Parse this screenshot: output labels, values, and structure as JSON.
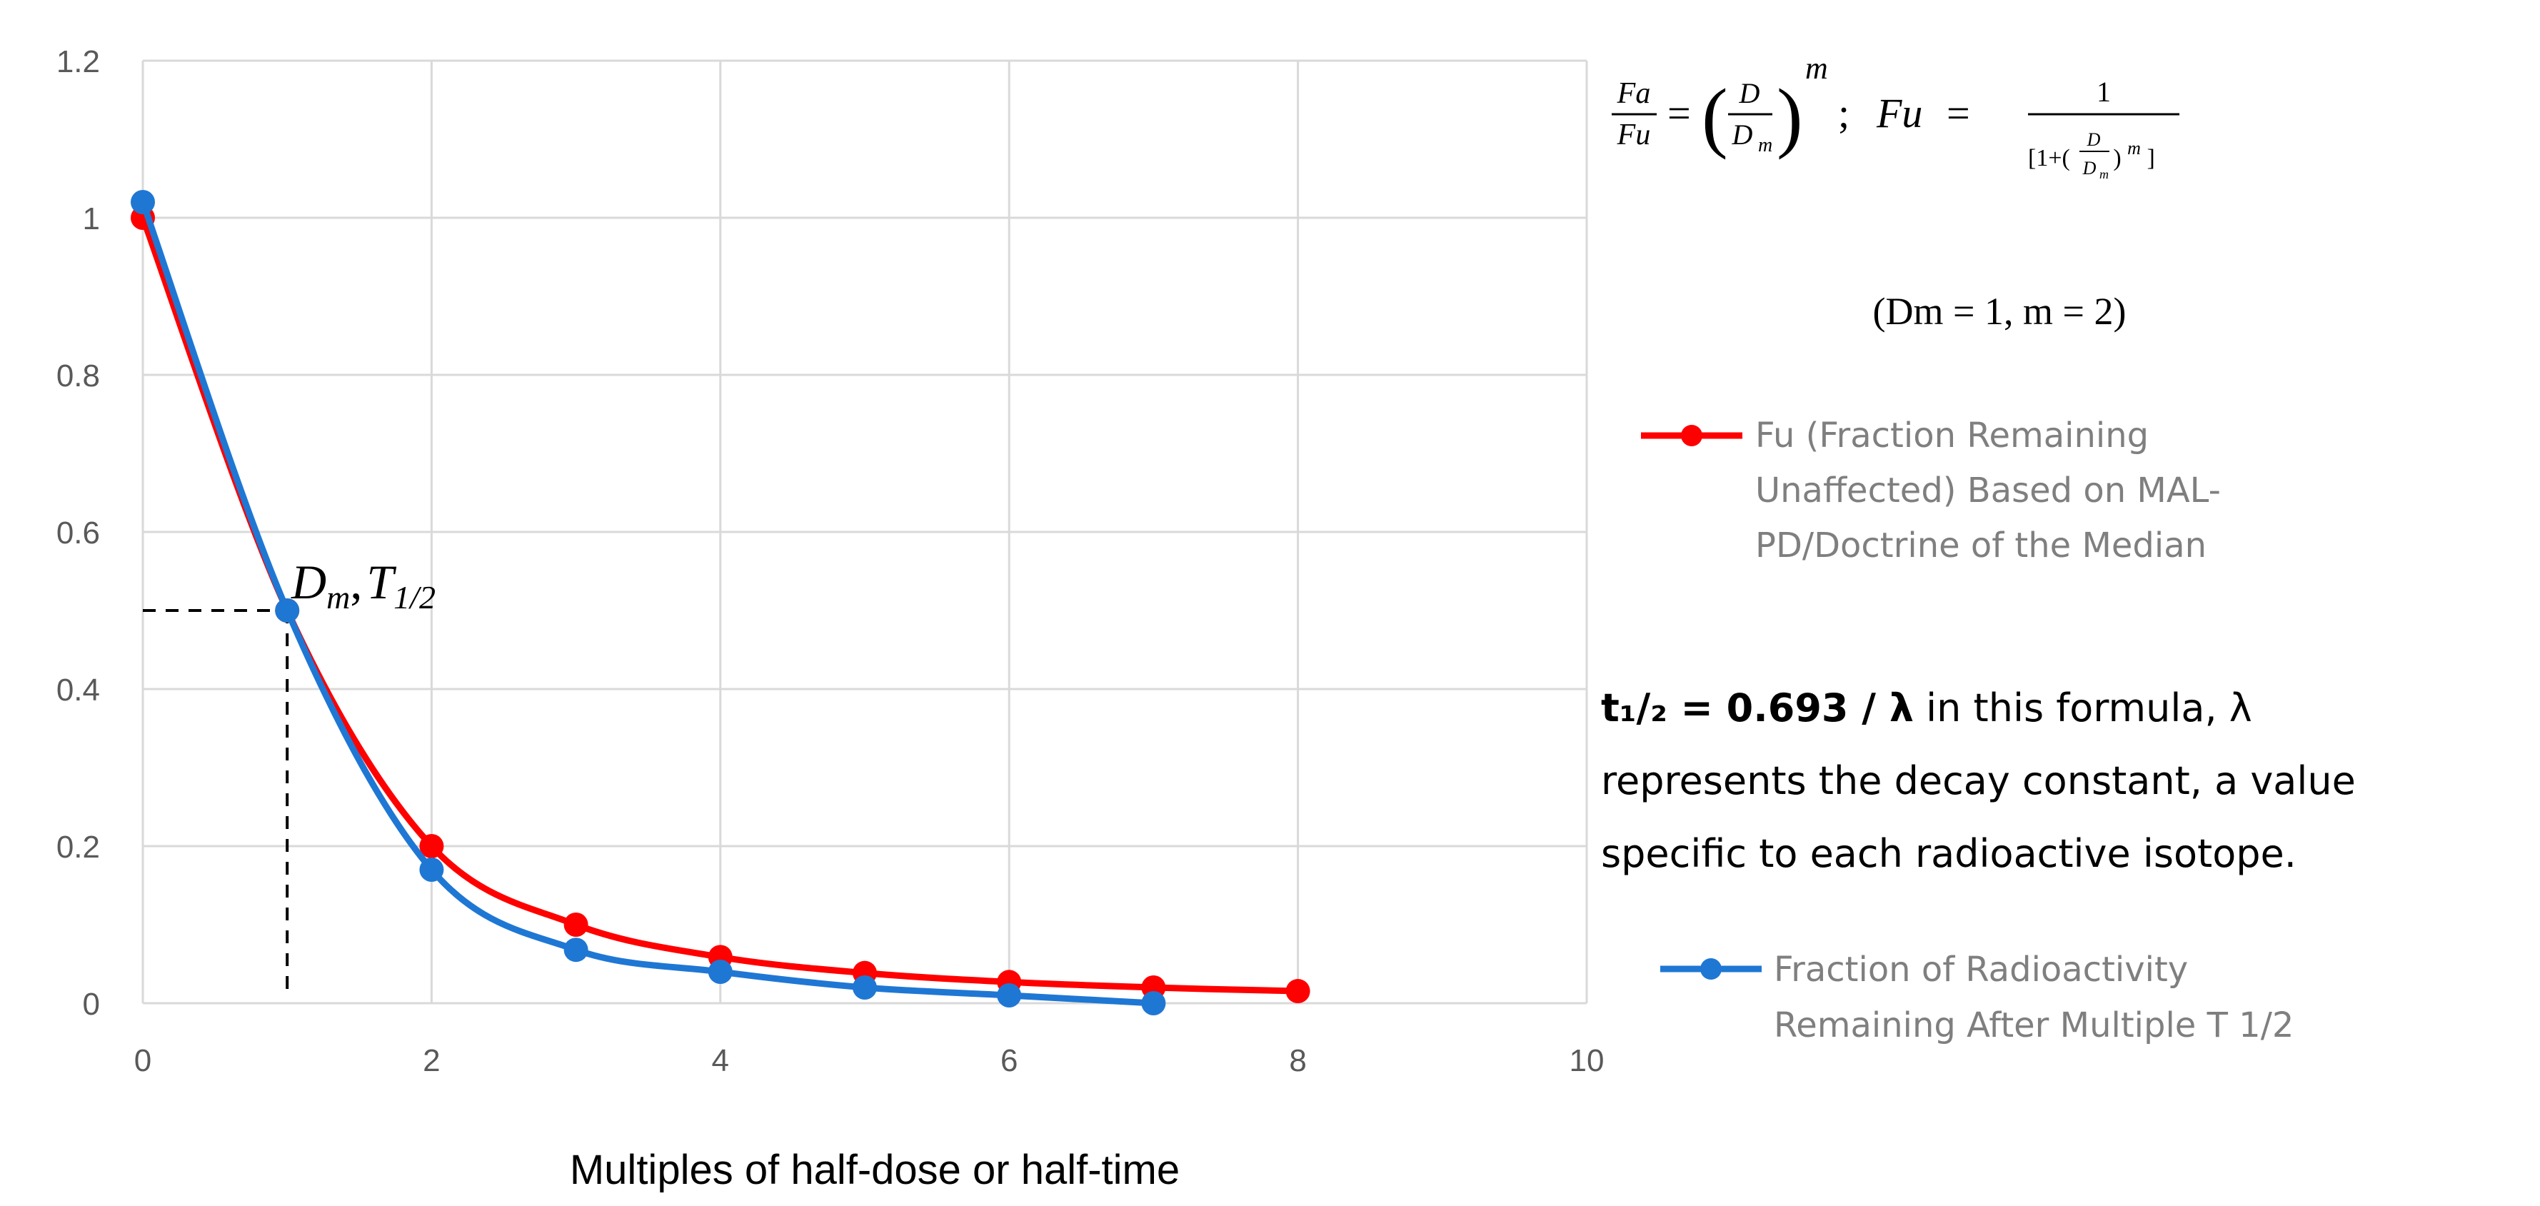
{
  "chart_data": {
    "type": "line",
    "xlabel": "Multiples of half-dose or half-time",
    "ylabel": "",
    "xlim": [
      0,
      10
    ],
    "ylim": [
      0,
      1.2
    ],
    "x_ticks": [
      "0",
      "2",
      "4",
      "6",
      "8",
      "10"
    ],
    "y_ticks": [
      "0",
      "0.2",
      "0.4",
      "0.6",
      "0.8",
      "1",
      "1.2"
    ],
    "grid": "vertical and horizontal",
    "legend_placement": "right",
    "series": [
      {
        "name": "Fu (Fraction Remaining Unaffected) Based on MAL-PD/Doctrine of the Median",
        "legend_lines": [
          "Fu (Fraction Remaining",
          "Unaffected) Based on MAL-",
          "PD/Doctrine of the Median"
        ],
        "color": "#ff0000",
        "x": [
          0,
          1,
          2,
          3,
          4,
          5,
          6,
          7,
          8
        ],
        "y": [
          1.0,
          0.5,
          0.2,
          0.1,
          0.0588,
          0.0385,
          0.027,
          0.02,
          0.0154
        ]
      },
      {
        "name": "Fraction of Radioactivity Remaining After Multiple T 1/2",
        "legend_lines": [
          "Fraction of Radioactivity",
          "Remaining After Multiple T 1/2"
        ],
        "color": "#1f77d4",
        "x": [
          0,
          1,
          2,
          3,
          4,
          5,
          6,
          7
        ],
        "y": [
          1.02,
          0.5,
          0.17,
          0.068,
          0.04,
          0.02,
          0.01,
          0.0
        ]
      }
    ],
    "annotations": {
      "point_label": {
        "main1": "D",
        "sub1": "m",
        "sep": ",",
        "main2": "T",
        "sub2": "1/2"
      },
      "median_marker": {
        "x": 1,
        "y": 0.5
      },
      "formula": {
        "fa": "Fa",
        "fu": "Fu",
        "eq": "=",
        "d": "D",
        "dm": "D",
        "dm_sub": "m",
        "exp": "m",
        "sep": ";",
        "fu2": "Fu",
        "eq2": "=",
        "num": "1",
        "den_open": "[1+(",
        "den_d": "D",
        "den_dm": "D",
        "den_dm_sub": "m",
        "den_close": ")",
        "den_exp": "m",
        "den_end": "]"
      },
      "params": "(Dm = 1,  m = 2)",
      "note": {
        "bold_part": "t₁/₂ = 0.693 / λ",
        "line1_rest": " in this formula, λ",
        "line2": "represents the decay constant, a value",
        "line3": "specific to each radioactive isotope."
      }
    }
  }
}
